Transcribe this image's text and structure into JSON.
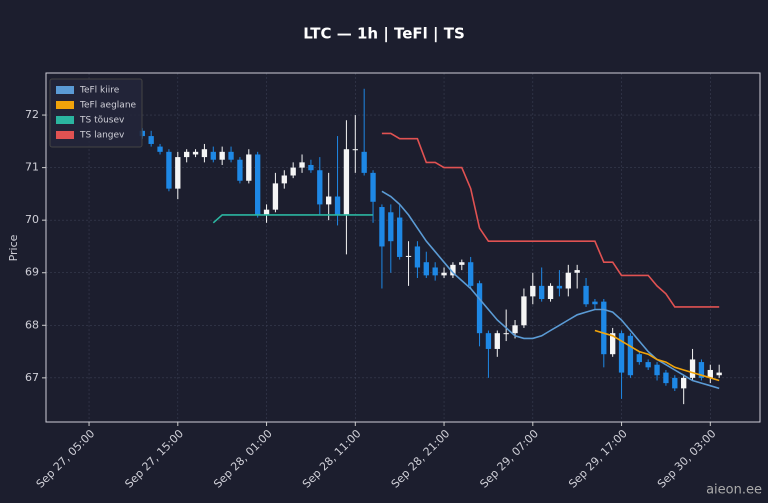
{
  "chart_data": {
    "type": "candlestick",
    "title": "LTC — 1h  |  TeFl  |  TS",
    "ylabel": "Price",
    "x": [
      "Sep 27, 11:00",
      "Sep 27, 12:00",
      "Sep 27, 13:00",
      "Sep 27, 14:00",
      "Sep 27, 15:00",
      "Sep 27, 16:00",
      "Sep 27, 17:00",
      "Sep 27, 18:00",
      "Sep 27, 19:00",
      "Sep 27, 20:00",
      "Sep 27, 21:00",
      "Sep 27, 22:00",
      "Sep 27, 23:00",
      "Sep 28, 00:00",
      "Sep 28, 01:00",
      "Sep 28, 02:00",
      "Sep 28, 03:00",
      "Sep 28, 04:00",
      "Sep 28, 05:00",
      "Sep 28, 06:00",
      "Sep 28, 07:00",
      "Sep 28, 08:00",
      "Sep 28, 09:00",
      "Sep 28, 10:00",
      "Sep 28, 11:00",
      "Sep 28, 12:00",
      "Sep 28, 13:00",
      "Sep 28, 14:00",
      "Sep 28, 15:00",
      "Sep 28, 16:00",
      "Sep 28, 17:00",
      "Sep 28, 18:00",
      "Sep 28, 19:00",
      "Sep 28, 20:00",
      "Sep 28, 21:00",
      "Sep 28, 22:00",
      "Sep 28, 23:00",
      "Sep 29, 00:00",
      "Sep 29, 01:00",
      "Sep 29, 02:00",
      "Sep 29, 03:00",
      "Sep 29, 04:00",
      "Sep 29, 05:00",
      "Sep 29, 06:00",
      "Sep 29, 07:00",
      "Sep 29, 08:00",
      "Sep 29, 09:00",
      "Sep 29, 10:00",
      "Sep 29, 11:00",
      "Sep 29, 12:00",
      "Sep 29, 13:00",
      "Sep 29, 14:00",
      "Sep 29, 15:00",
      "Sep 29, 16:00",
      "Sep 29, 17:00",
      "Sep 29, 18:00",
      "Sep 29, 19:00",
      "Sep 29, 20:00",
      "Sep 29, 21:00",
      "Sep 29, 22:00",
      "Sep 29, 23:00",
      "Sep 30, 00:00",
      "Sep 30, 01:00",
      "Sep 30, 02:00",
      "Sep 30, 03:00",
      "Sep 30, 04:00"
    ],
    "open": [
      71.7,
      71.6,
      71.4,
      71.3,
      70.6,
      71.2,
      71.25,
      71.2,
      71.3,
      71.15,
      71.3,
      71.15,
      70.75,
      71.25,
      70.1,
      70.2,
      70.7,
      70.85,
      71.0,
      71.05,
      70.95,
      70.3,
      70.45,
      70.1,
      71.35,
      71.3,
      70.9,
      70.25,
      70.15,
      70.05,
      69.3,
      69.5,
      69.2,
      69.1,
      68.95,
      68.95,
      69.15,
      69.2,
      68.8,
      67.85,
      67.55,
      67.85,
      67.85,
      68.0,
      68.55,
      68.75,
      68.5,
      68.75,
      68.7,
      69.0,
      68.75,
      68.45,
      68.45,
      67.45,
      67.85,
      67.8,
      67.45,
      67.3,
      67.25,
      67.1,
      67.0,
      66.8,
      67.0,
      67.3,
      67.0,
      67.05
    ],
    "high": [
      71.75,
      71.7,
      71.45,
      71.35,
      71.3,
      71.35,
      71.35,
      71.45,
      71.4,
      71.4,
      71.4,
      71.2,
      71.35,
      71.3,
      70.3,
      70.9,
      70.95,
      71.1,
      71.25,
      71.15,
      71.2,
      70.9,
      71.6,
      71.9,
      72.0,
      72.5,
      70.95,
      70.3,
      70.3,
      70.3,
      69.6,
      69.6,
      69.4,
      69.2,
      69.1,
      69.2,
      69.25,
      69.3,
      68.85,
      67.9,
      67.9,
      68.3,
      68.1,
      68.7,
      69.0,
      69.1,
      68.8,
      69.05,
      69.15,
      69.15,
      68.9,
      68.5,
      68.5,
      67.95,
      67.9,
      67.85,
      67.5,
      67.35,
      67.3,
      67.15,
      67.05,
      67.05,
      67.55,
      67.35,
      67.25,
      67.25
    ],
    "low": [
      71.55,
      71.4,
      71.25,
      70.55,
      70.4,
      71.1,
      71.2,
      71.1,
      71.1,
      71.05,
      71.1,
      70.7,
      70.7,
      70.05,
      69.95,
      70.15,
      70.6,
      70.8,
      70.9,
      70.9,
      70.1,
      70.0,
      69.9,
      69.35,
      70.9,
      70.85,
      69.95,
      68.7,
      69.0,
      69.25,
      68.75,
      68.9,
      68.9,
      68.85,
      68.9,
      68.9,
      69.05,
      68.7,
      67.6,
      67.0,
      67.4,
      67.7,
      67.75,
      67.95,
      68.4,
      68.45,
      68.45,
      68.55,
      68.55,
      68.7,
      68.35,
      68.3,
      67.2,
      67.4,
      66.6,
      67.0,
      67.25,
      67.15,
      66.95,
      66.85,
      66.75,
      66.5,
      66.95,
      66.95,
      66.9,
      67.0
    ],
    "close": [
      71.6,
      71.45,
      71.3,
      70.6,
      71.2,
      71.3,
      71.3,
      71.35,
      71.15,
      71.3,
      71.15,
      70.75,
      71.25,
      70.1,
      70.2,
      70.7,
      70.85,
      71.0,
      71.1,
      70.95,
      70.3,
      70.45,
      70.1,
      71.35,
      71.35,
      70.9,
      70.35,
      69.5,
      69.6,
      69.3,
      69.32,
      69.1,
      68.95,
      68.95,
      69.0,
      69.15,
      69.2,
      68.75,
      67.85,
      67.55,
      67.85,
      67.85,
      68.0,
      68.55,
      68.75,
      68.5,
      68.75,
      68.7,
      69.0,
      69.05,
      68.4,
      68.4,
      67.45,
      67.85,
      67.1,
      67.05,
      67.3,
      67.2,
      67.05,
      66.9,
      66.8,
      67.0,
      67.35,
      67.0,
      67.15,
      67.1
    ],
    "up_color": "#f5f5f5",
    "down_color": "#1e88e5",
    "series": [
      {
        "name": "TeFl kiire",
        "color": "#5b9bd5",
        "values": [
          null,
          null,
          null,
          null,
          null,
          null,
          null,
          null,
          null,
          null,
          null,
          null,
          null,
          null,
          null,
          null,
          null,
          null,
          null,
          null,
          null,
          null,
          null,
          null,
          null,
          null,
          null,
          70.55,
          70.45,
          70.3,
          70.1,
          69.85,
          69.6,
          69.4,
          69.2,
          69.0,
          68.85,
          68.7,
          68.5,
          68.3,
          68.1,
          67.95,
          67.8,
          67.75,
          67.75,
          67.8,
          67.9,
          68.0,
          68.1,
          68.2,
          68.25,
          68.3,
          68.3,
          68.25,
          68.1,
          67.9,
          67.7,
          67.5,
          67.35,
          67.25,
          67.15,
          67.05,
          66.95,
          66.9,
          66.85,
          66.8
        ]
      },
      {
        "name": "TeFl aeglane",
        "color": "#f0a30a",
        "values": [
          null,
          null,
          null,
          null,
          null,
          null,
          null,
          null,
          null,
          null,
          null,
          null,
          null,
          null,
          null,
          null,
          null,
          null,
          null,
          null,
          null,
          null,
          null,
          null,
          null,
          null,
          null,
          null,
          null,
          null,
          null,
          null,
          null,
          null,
          null,
          null,
          null,
          null,
          null,
          null,
          null,
          null,
          null,
          null,
          null,
          null,
          null,
          null,
          null,
          null,
          null,
          67.9,
          67.85,
          67.8,
          67.7,
          67.6,
          67.5,
          67.45,
          67.35,
          67.3,
          67.2,
          67.15,
          67.1,
          67.05,
          67.0,
          66.95
        ]
      },
      {
        "name": "TS tõusev",
        "color": "#2bb5a0",
        "values": [
          null,
          null,
          null,
          null,
          null,
          null,
          null,
          null,
          69.95,
          70.1,
          70.1,
          70.1,
          70.1,
          70.1,
          70.1,
          70.1,
          70.1,
          70.1,
          70.1,
          70.1,
          70.1,
          70.1,
          70.1,
          70.1,
          70.1,
          70.1,
          70.1,
          null,
          null,
          null,
          null,
          null,
          null,
          null,
          null,
          null,
          null,
          null,
          null,
          null,
          null,
          null,
          null,
          null,
          null,
          null,
          null,
          null,
          null,
          null,
          null,
          null,
          null,
          null,
          null,
          null,
          null,
          null,
          null,
          null,
          null,
          null,
          null,
          null,
          null,
          null
        ]
      },
      {
        "name": "TS langev",
        "color": "#e05252",
        "values": [
          null,
          null,
          null,
          null,
          null,
          null,
          null,
          null,
          null,
          null,
          null,
          null,
          null,
          null,
          null,
          null,
          null,
          null,
          null,
          null,
          null,
          null,
          null,
          null,
          null,
          null,
          null,
          71.65,
          71.65,
          71.55,
          71.55,
          71.55,
          71.1,
          71.1,
          71.0,
          71.0,
          71.0,
          70.6,
          69.85,
          69.6,
          69.6,
          69.6,
          69.6,
          69.6,
          69.6,
          69.6,
          69.6,
          69.6,
          69.6,
          69.6,
          69.6,
          69.6,
          69.2,
          69.2,
          68.95,
          68.95,
          68.95,
          68.95,
          68.75,
          68.6,
          68.35,
          68.35,
          68.35,
          68.35,
          68.35,
          68.35
        ]
      }
    ],
    "xlim": [
      "Sep 27, 00:09",
      "Sep 30, 08:36"
    ],
    "xticks": [
      "Sep 27, 05:00",
      "Sep 27, 15:00",
      "Sep 28, 01:00",
      "Sep 28, 11:00",
      "Sep 28, 21:00",
      "Sep 29, 07:00",
      "Sep 29, 17:00",
      "Sep 30, 03:00"
    ],
    "ylim": [
      66.16,
      72.8
    ],
    "yticks": [
      67,
      68,
      69,
      70,
      71,
      72
    ],
    "grid": true,
    "legend": "upper left"
  },
  "watermark": "aieon.ee"
}
